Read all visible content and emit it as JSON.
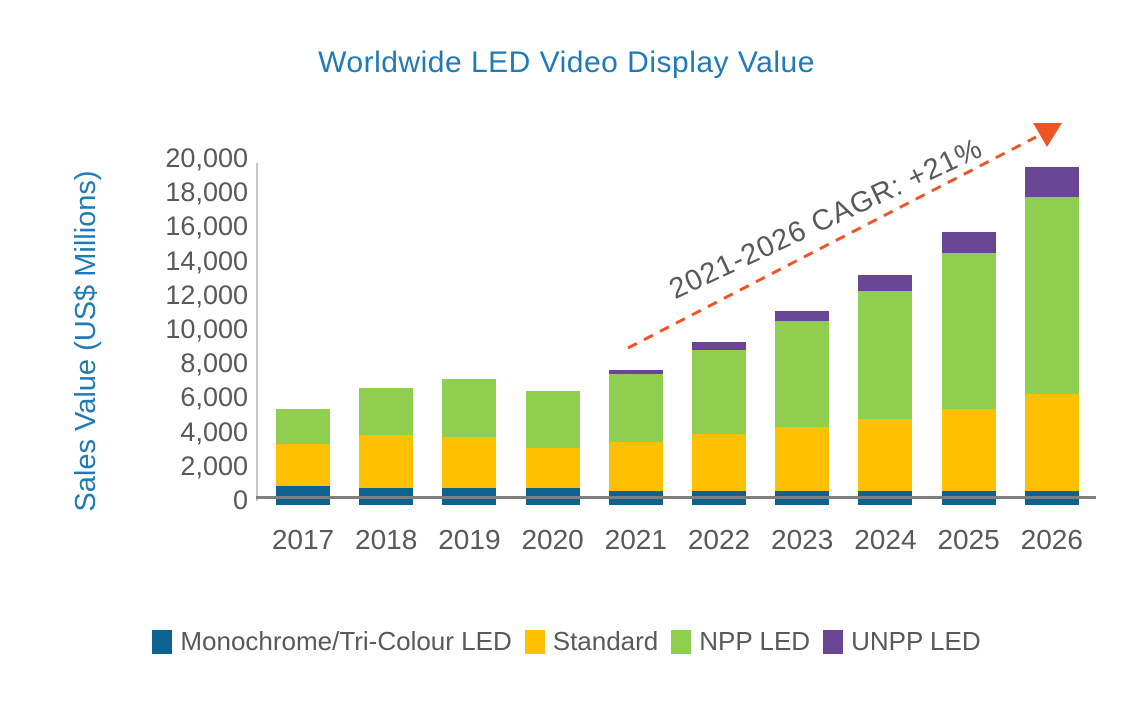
{
  "title": "Worldwide LED Video Display Value",
  "colors": {
    "title_blue": "#1F7AB8",
    "text_gray": "#595959",
    "axis_line_gray": "#7F7F7F",
    "axis_line_light": "#C6C6C6",
    "arrow_orange": "#F05325"
  },
  "chart_data": {
    "type": "bar",
    "stacked": true,
    "title": "Worldwide LED Video Display Value",
    "ylabel": "Sales Value (US$ Millions)",
    "xlabel": "",
    "grid": false,
    "legend_position": "bottom",
    "ylim": [
      0,
      20000
    ],
    "ytick_step": 2000,
    "ytick_labels": [
      "0",
      "2,000",
      "4,000",
      "6,000",
      "8,000",
      "10,000",
      "12,000",
      "14,000",
      "16,000",
      "18,000",
      "20,000"
    ],
    "categories": [
      "2017",
      "2018",
      "2019",
      "2020",
      "2021",
      "2022",
      "2023",
      "2024",
      "2025",
      "2026"
    ],
    "series": [
      {
        "name": "Monochrome/Tri-Colour LED",
        "color": "#0E628F",
        "values": [
          800,
          700,
          700,
          700,
          500,
          500,
          500,
          500,
          500,
          500
        ]
      },
      {
        "name": "Standard",
        "color": "#FFC000",
        "values": [
          2450,
          3100,
          3000,
          2350,
          2900,
          3350,
          3750,
          4250,
          4800,
          5700
        ]
      },
      {
        "name": "NPP LED",
        "color": "#8FCE4E",
        "values": [
          2050,
          2750,
          3350,
          3300,
          3950,
          4950,
          6200,
          7500,
          9150,
          11500
        ]
      },
      {
        "name": "UNPP LED",
        "color": "#6A4593",
        "values": [
          0,
          0,
          0,
          0,
          250,
          450,
          600,
          900,
          1200,
          1800
        ]
      }
    ],
    "totals": [
      5300,
      6550,
      7050,
      6350,
      7600,
      9250,
      11050,
      13150,
      15650,
      19500
    ],
    "annotation": {
      "text": "2021-2026 CAGR: +21%",
      "color": "#595959",
      "arrow_color": "#F05325",
      "arrow_style": "dashed"
    }
  }
}
